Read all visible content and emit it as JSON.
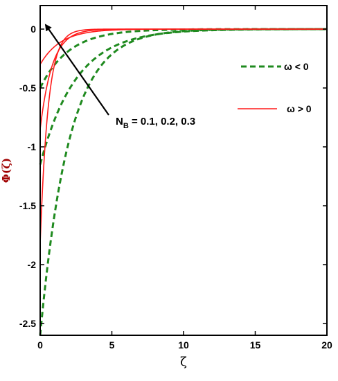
{
  "chart_data": {
    "type": "line",
    "xlabel": "ζ",
    "ylabel": "Φ(ζ)",
    "xlim": [
      0,
      20
    ],
    "ylim": [
      -2.6,
      0.2
    ],
    "xticks": [
      "0",
      "5",
      "10",
      "15",
      "20"
    ],
    "yticks": [
      "0",
      "-0.5",
      "-1",
      "-1.5",
      "-2",
      "-2.5"
    ],
    "xtick_values": [
      0,
      5,
      10,
      15,
      20
    ],
    "ytick_values": [
      0,
      -0.5,
      -1,
      -1.5,
      -2,
      -2.5
    ],
    "grid": false,
    "legend": {
      "placement": "right",
      "entries": [
        {
          "label": "ω < 0",
          "color": "#1f8a1f",
          "style": "dashed"
        },
        {
          "label": "ω > 0",
          "color": "#ff1a1a",
          "style": "solid"
        }
      ]
    },
    "annotation": {
      "text_main": "N",
      "text_sub": "B",
      "text_rest": " = 0.1, 0.2, 0.3"
    },
    "series": [
      {
        "group": "ω < 0",
        "color": "#1f8a1f",
        "dash": true,
        "phi0": -0.5,
        "rate": 0.5
      },
      {
        "group": "ω < 0",
        "color": "#1f8a1f",
        "dash": true,
        "phi0": -1.15,
        "rate": 0.4
      },
      {
        "group": "ω < 0",
        "color": "#1f8a1f",
        "dash": true,
        "phi0": -2.6,
        "rate": 0.5
      },
      {
        "group": "ω > 0",
        "color": "#ff1a1a",
        "dash": false,
        "phi0": -0.3,
        "rate": 0.7
      },
      {
        "group": "ω > 0",
        "color": "#ff1a1a",
        "dash": false,
        "phi0": -0.85,
        "rate": 1.2
      },
      {
        "group": "ω > 0",
        "color": "#ff1a1a",
        "dash": false,
        "phi0": -1.82,
        "rate": 1.8
      }
    ]
  }
}
